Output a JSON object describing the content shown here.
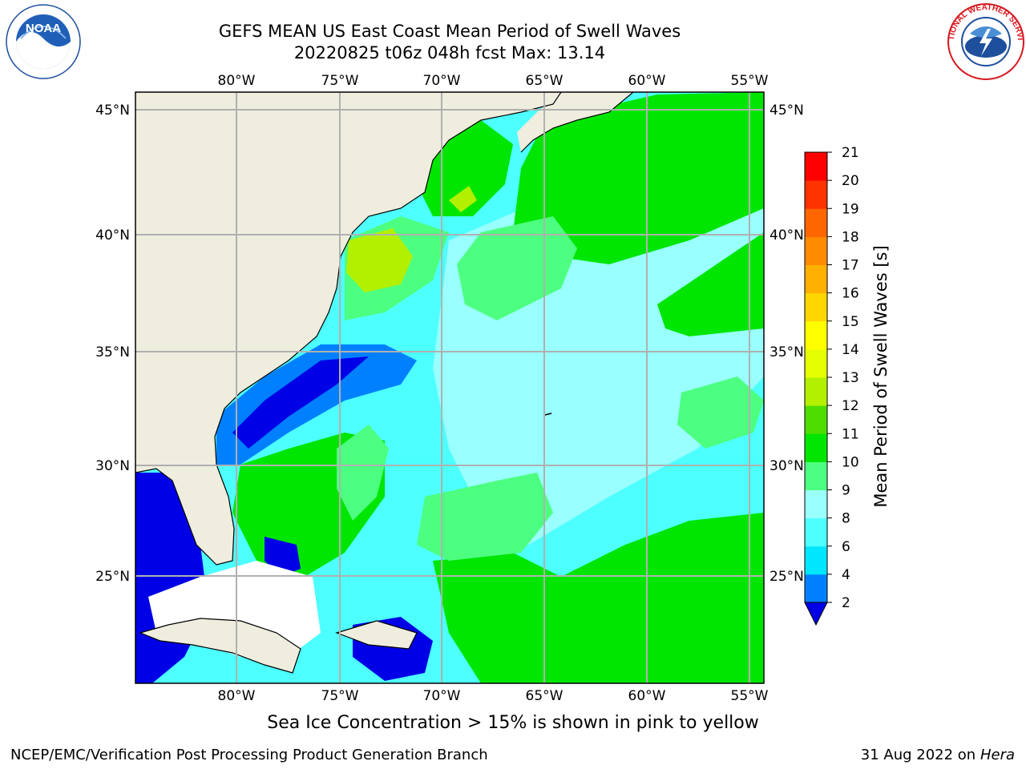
{
  "title": {
    "line1": "GEFS MEAN US East Coast Mean Period of Swell Waves",
    "line2": "20220825 t06z 048h fcst   Max: 13.14"
  },
  "map": {
    "lon_labels": [
      "80°W",
      "75°W",
      "70°W",
      "65°W",
      "60°W",
      "55°W"
    ],
    "lat_labels": [
      "45°N",
      "40°N",
      "35°N",
      "30°N",
      "25°N"
    ],
    "colors": {
      "land": "#efedde",
      "grid": "#b0b0b0",
      "coast": "#000000"
    }
  },
  "colorbar": {
    "label": "Mean Period of Swell Waves [s]",
    "ticks": [
      "21",
      "20",
      "19",
      "18",
      "17",
      "16",
      "15",
      "14",
      "13",
      "12",
      "11",
      "10",
      "9",
      "8",
      "6",
      "4",
      "2"
    ],
    "colors": [
      "#0000e6",
      "#0080ff",
      "#00e6ff",
      "#4dffff",
      "#99ffff",
      "#4dff80",
      "#00e600",
      "#4ddd00",
      "#b3f000",
      "#e6ff00",
      "#ffff00",
      "#ffd700",
      "#ffb000",
      "#ff8c00",
      "#ff6600",
      "#ff3300",
      "#ff0000"
    ]
  },
  "footer": {
    "ice_note": "Sea Ice Concentration > 15% is shown in pink to yellow",
    "left_credit": "NCEP/EMC/Verification Post Processing Product Generation Branch",
    "date": "31 Aug 2022 on",
    "machine": "Hera"
  },
  "logos": {
    "noaa_text": "NOAA",
    "nws_text": "NATIONAL WEATHER SERVICE"
  }
}
